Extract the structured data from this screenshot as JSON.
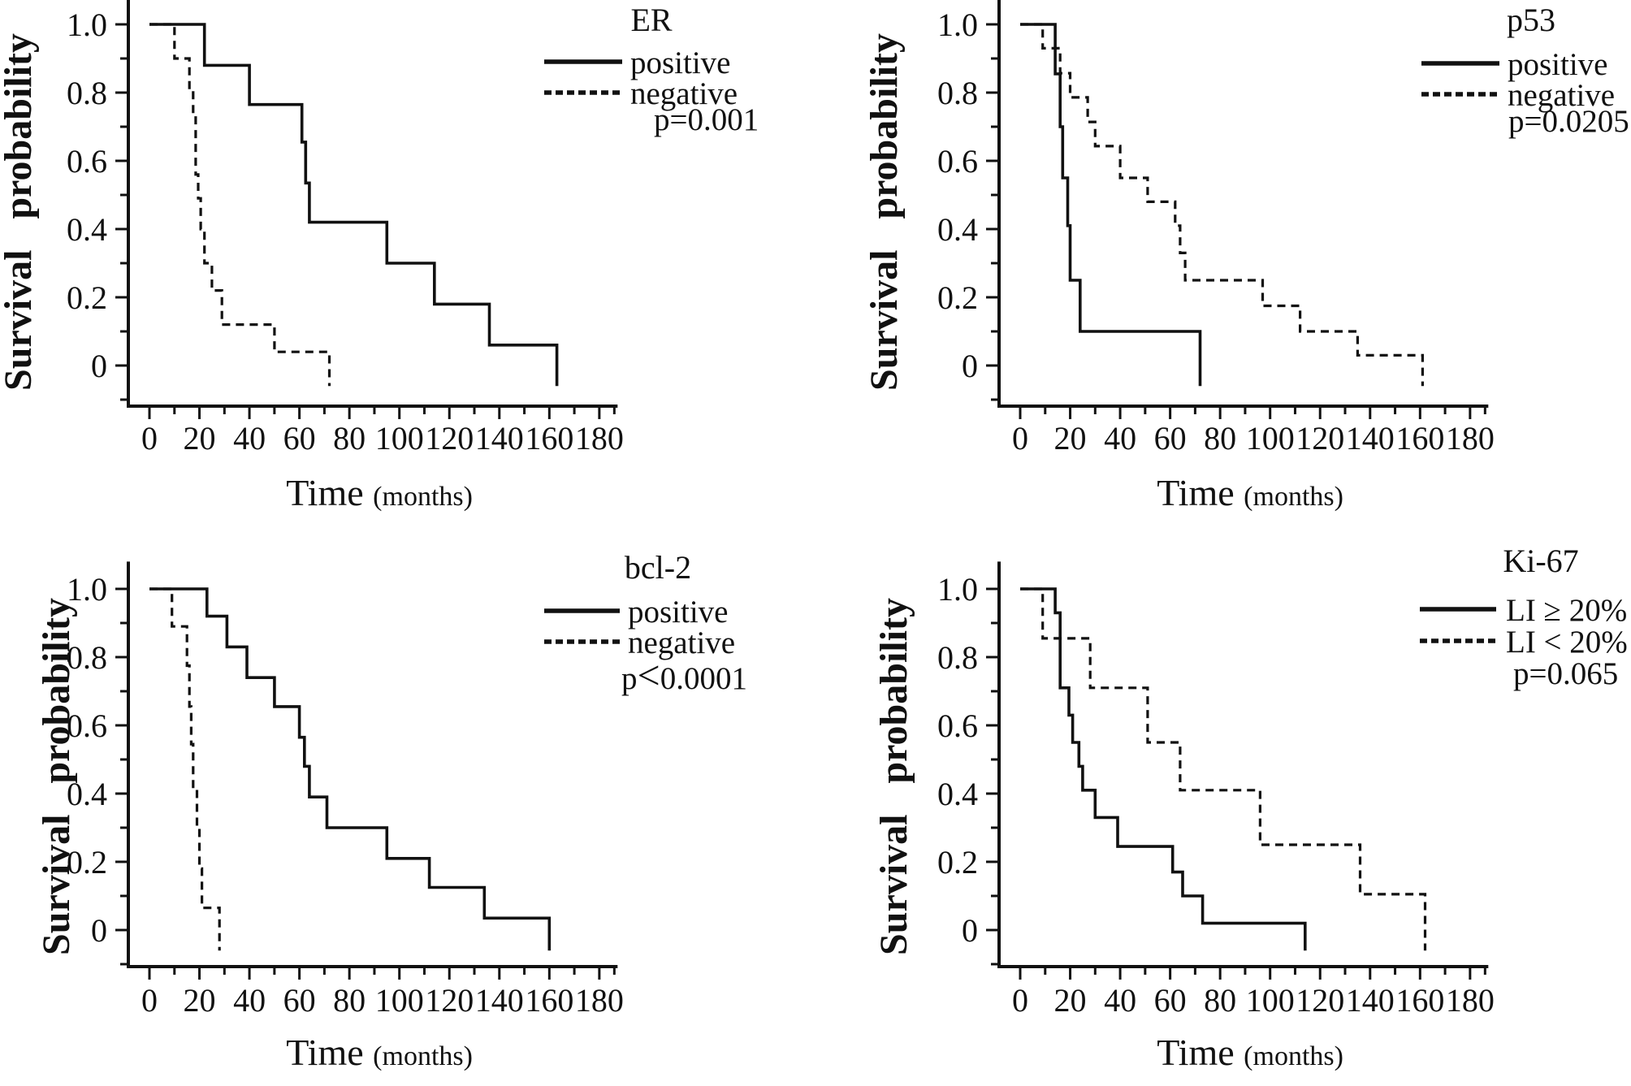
{
  "figure": {
    "background": "#ffffff",
    "ink_color": "#111111",
    "ylabel": "Survival probability",
    "xlabel": "Time",
    "xlabel_unit": "(months)",
    "x_tick_labels": [
      "0",
      "20",
      "40",
      "60",
      "80",
      "100",
      "120",
      "140",
      "160",
      "180"
    ],
    "x_tick_values": [
      0,
      20,
      40,
      60,
      80,
      100,
      120,
      140,
      160,
      180
    ],
    "x_minor_tick_values": [
      10,
      30,
      50,
      70,
      90,
      110,
      130,
      150,
      170,
      186
    ],
    "y_tick_labels": [
      "1.0",
      "0.8",
      "0.6",
      "0.4",
      "0.2",
      "0"
    ],
    "y_tick_values": [
      1.0,
      0.8,
      0.6,
      0.4,
      0.2,
      0
    ],
    "y_minor_tick_values": [
      0.9,
      0.7,
      0.5,
      0.3,
      0.1,
      -0.1
    ]
  },
  "chart_data": [
    {
      "type": "line",
      "subtype": "kaplan_meier_step",
      "title": "ER",
      "p_value": "p=0.001",
      "position": "top-left",
      "xlabel": "Time (months)",
      "ylabel": "Survival probability",
      "xlim": [
        0,
        180
      ],
      "ylim": [
        -0.06,
        1.0
      ],
      "grid": false,
      "legend_position": "top-right",
      "series": [
        {
          "name": "positive",
          "line_style": "solid",
          "steps": [
            [
              0,
              1.0
            ],
            [
              22,
              0.88
            ],
            [
              40,
              0.765
            ],
            [
              61,
              0.655
            ],
            [
              62.5,
              0.535
            ],
            [
              64,
              0.42
            ],
            [
              95,
              0.3
            ],
            [
              114,
              0.18
            ],
            [
              136,
              0.06
            ]
          ],
          "end_time": 163
        },
        {
          "name": "negative",
          "line_style": "dashed",
          "steps": [
            [
              0,
              1.0
            ],
            [
              10,
              0.9
            ],
            [
              16,
              0.81
            ],
            [
              17.5,
              0.735
            ],
            [
              18.5,
              0.56
            ],
            [
              19.5,
              0.49
            ],
            [
              20.5,
              0.4
            ],
            [
              22,
              0.3
            ],
            [
              25,
              0.22
            ],
            [
              29,
              0.12
            ],
            [
              50,
              0.04
            ]
          ],
          "end_time": 72
        }
      ]
    },
    {
      "type": "line",
      "subtype": "kaplan_meier_step",
      "title": "p53",
      "p_value": "p=0.0205",
      "position": "top-right",
      "xlabel": "Time (months)",
      "ylabel": "Survival probability",
      "xlim": [
        0,
        180
      ],
      "ylim": [
        -0.06,
        1.0
      ],
      "grid": false,
      "legend_position": "top-right",
      "series": [
        {
          "name": "positive",
          "line_style": "solid",
          "steps": [
            [
              0,
              1.0
            ],
            [
              14,
              0.855
            ],
            [
              16,
              0.7
            ],
            [
              17,
              0.55
            ],
            [
              19,
              0.41
            ],
            [
              20,
              0.25
            ],
            [
              24,
              0.1
            ]
          ],
          "end_time": 72
        },
        {
          "name": "negative",
          "line_style": "dashed",
          "steps": [
            [
              0,
              1.0
            ],
            [
              9,
              0.93
            ],
            [
              16,
              0.857
            ],
            [
              20,
              0.786
            ],
            [
              27,
              0.714
            ],
            [
              30,
              0.643
            ],
            [
              40,
              0.55
            ],
            [
              51,
              0.48
            ],
            [
              62,
              0.41
            ],
            [
              64,
              0.33
            ],
            [
              66,
              0.25
            ],
            [
              97,
              0.175
            ],
            [
              112,
              0.1
            ],
            [
              135,
              0.03
            ]
          ],
          "end_time": 161
        }
      ]
    },
    {
      "type": "line",
      "subtype": "kaplan_meier_step",
      "title": "bcl-2",
      "p_value": "p<0.0001",
      "position": "bottom-left",
      "xlabel": "Time (months)",
      "ylabel": "Survival probability",
      "xlim": [
        0,
        180
      ],
      "ylim": [
        -0.06,
        1.0
      ],
      "grid": false,
      "legend_position": "top-right",
      "series": [
        {
          "name": "positive",
          "line_style": "solid",
          "steps": [
            [
              0,
              1.0
            ],
            [
              23,
              0.92
            ],
            [
              31,
              0.83
            ],
            [
              39,
              0.74
            ],
            [
              50,
              0.655
            ],
            [
              60,
              0.565
            ],
            [
              62,
              0.48
            ],
            [
              64,
              0.39
            ],
            [
              71,
              0.3
            ],
            [
              95,
              0.21
            ],
            [
              112,
              0.125
            ],
            [
              134,
              0.035
            ]
          ],
          "end_time": 160
        },
        {
          "name": "negative",
          "line_style": "dashed",
          "steps": [
            [
              0,
              1.0
            ],
            [
              9,
              0.89
            ],
            [
              15,
              0.775
            ],
            [
              16,
              0.655
            ],
            [
              16.7,
              0.545
            ],
            [
              17.5,
              0.42
            ],
            [
              19,
              0.3
            ],
            [
              20,
              0.18
            ],
            [
              21,
              0.065
            ]
          ],
          "end_time": 28
        }
      ]
    },
    {
      "type": "line",
      "subtype": "kaplan_meier_step",
      "title": "Ki-67",
      "p_value": "p=0.065",
      "position": "bottom-right",
      "xlabel": "Time (months)",
      "ylabel": "Survival probability",
      "xlim": [
        0,
        180
      ],
      "ylim": [
        -0.06,
        1.0
      ],
      "grid": false,
      "legend_position": "top-right",
      "series": [
        {
          "name": "LI ≥ 20%",
          "line_style": "solid",
          "steps": [
            [
              0,
              1.0
            ],
            [
              14,
              0.93
            ],
            [
              16,
              0.71
            ],
            [
              19.5,
              0.63
            ],
            [
              21,
              0.55
            ],
            [
              23.5,
              0.48
            ],
            [
              25,
              0.41
            ],
            [
              30,
              0.33
            ],
            [
              39,
              0.245
            ],
            [
              61,
              0.17
            ],
            [
              65,
              0.1
            ],
            [
              73,
              0.02
            ]
          ],
          "end_time": 114
        },
        {
          "name": "LI < 20%",
          "line_style": "dashed",
          "steps": [
            [
              0,
              1.0
            ],
            [
              9,
              0.855
            ],
            [
              28,
              0.71
            ],
            [
              51,
              0.55
            ],
            [
              64,
              0.41
            ],
            [
              96,
              0.25
            ],
            [
              136,
              0.105
            ]
          ],
          "end_time": 162
        }
      ]
    }
  ]
}
